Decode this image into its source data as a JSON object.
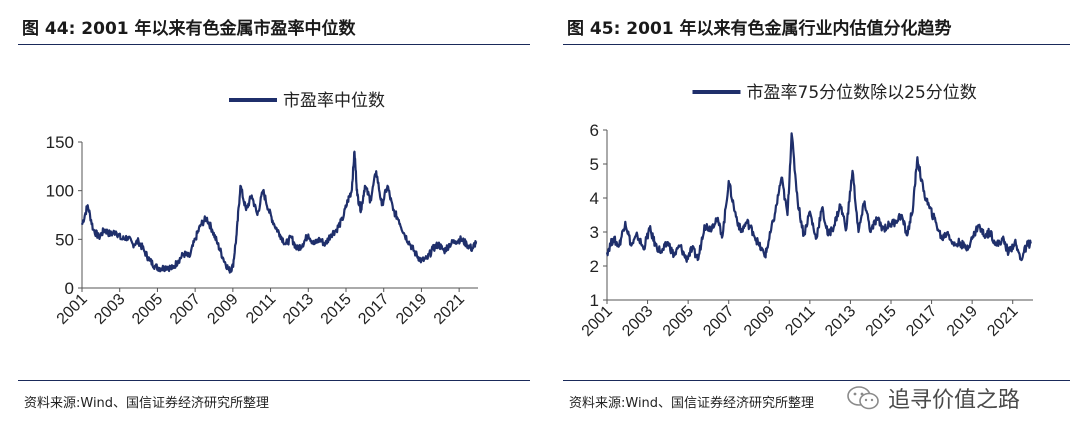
{
  "left": {
    "title": "图 44:  2001 年以来有色金属市盈率中位数",
    "source": "资料来源:Wind、国信证券经济研究所整理"
  },
  "right": {
    "title": "图 45:  2001 年以来有色金属行业内估值分化趋势",
    "source": "资料来源:Wind、国信证券经济研究所整理"
  },
  "watermark": {
    "text": "追寻价值之路",
    "icon": "wechat-icon"
  },
  "colors": {
    "line": "#1f2f6b",
    "text": "#222222",
    "rule": "#1a2a5a"
  },
  "chart_data": [
    {
      "type": "line",
      "legend_position": "top-center",
      "grid": false,
      "series": [
        {
          "name": "市盈率中位数",
          "x": [
            2001.0,
            2001.3,
            2001.6,
            2001.9,
            2002.2,
            2002.5,
            2002.8,
            2003.1,
            2003.4,
            2003.7,
            2004.0,
            2004.3,
            2004.6,
            2004.9,
            2005.2,
            2005.5,
            2005.8,
            2006.1,
            2006.4,
            2006.7,
            2007.0,
            2007.3,
            2007.6,
            2007.9,
            2008.2,
            2008.5,
            2008.8,
            2009.0,
            2009.2,
            2009.4,
            2009.7,
            2010.0,
            2010.3,
            2010.6,
            2010.9,
            2011.2,
            2011.5,
            2011.8,
            2012.1,
            2012.4,
            2012.7,
            2013.0,
            2013.3,
            2013.6,
            2013.9,
            2014.2,
            2014.5,
            2014.8,
            2015.1,
            2015.3,
            2015.45,
            2015.6,
            2015.8,
            2016.0,
            2016.3,
            2016.6,
            2016.9,
            2017.2,
            2017.5,
            2017.8,
            2018.1,
            2018.4,
            2018.7,
            2019.0,
            2019.3,
            2019.6,
            2019.9,
            2020.2,
            2020.5,
            2020.8,
            2021.1,
            2021.4,
            2021.7,
            2021.9
          ],
          "y": [
            65,
            85,
            60,
            52,
            60,
            55,
            58,
            50,
            52,
            45,
            48,
            38,
            28,
            22,
            20,
            22,
            20,
            28,
            35,
            32,
            50,
            65,
            72,
            60,
            45,
            30,
            18,
            22,
            55,
            105,
            80,
            95,
            75,
            100,
            80,
            65,
            55,
            45,
            52,
            40,
            45,
            55,
            45,
            50,
            45,
            55,
            60,
            70,
            90,
            100,
            140,
            95,
            80,
            105,
            90,
            120,
            85,
            105,
            80,
            70,
            55,
            45,
            35,
            28,
            30,
            40,
            45,
            38,
            45,
            48,
            50,
            45,
            40,
            48
          ]
        }
      ],
      "xlabel": "",
      "ylabel": "",
      "xticks": [
        "2001",
        "2003",
        "2005",
        "2007",
        "2009",
        "2011",
        "2013",
        "2015",
        "2017",
        "2019",
        "2021"
      ],
      "yticks": [
        0,
        50,
        100,
        150
      ],
      "xlim": [
        2001,
        2022
      ],
      "ylim": [
        0,
        150
      ]
    },
    {
      "type": "line",
      "legend_position": "top-center",
      "grid": false,
      "series": [
        {
          "name": "市盈率75分位数除以25分位数",
          "x": [
            2001.0,
            2001.3,
            2001.6,
            2001.9,
            2002.2,
            2002.5,
            2002.8,
            2003.1,
            2003.4,
            2003.7,
            2004.0,
            2004.3,
            2004.6,
            2004.9,
            2005.2,
            2005.5,
            2005.8,
            2006.1,
            2006.4,
            2006.7,
            2007.0,
            2007.3,
            2007.6,
            2007.9,
            2008.2,
            2008.5,
            2008.8,
            2009.0,
            2009.3,
            2009.6,
            2009.9,
            2010.1,
            2010.4,
            2010.7,
            2011.0,
            2011.3,
            2011.6,
            2011.9,
            2012.2,
            2012.5,
            2012.8,
            2013.1,
            2013.4,
            2013.7,
            2014.0,
            2014.3,
            2014.6,
            2014.9,
            2015.2,
            2015.5,
            2015.8,
            2016.1,
            2016.3,
            2016.6,
            2016.9,
            2017.2,
            2017.5,
            2017.8,
            2018.1,
            2018.4,
            2018.7,
            2019.0,
            2019.3,
            2019.6,
            2019.9,
            2020.2,
            2020.5,
            2020.8,
            2021.1,
            2021.4,
            2021.7,
            2021.9
          ],
          "y": [
            2.4,
            2.8,
            2.6,
            3.3,
            2.6,
            2.9,
            2.5,
            3.1,
            2.6,
            2.4,
            2.7,
            2.3,
            2.6,
            2.2,
            2.5,
            2.2,
            3.2,
            3.1,
            3.4,
            2.9,
            4.5,
            3.6,
            3.0,
            3.3,
            3.0,
            2.6,
            2.3,
            2.8,
            3.6,
            4.6,
            3.5,
            5.9,
            3.9,
            2.9,
            3.6,
            2.8,
            3.7,
            2.9,
            3.2,
            3.8,
            3.1,
            4.8,
            3.0,
            3.9,
            3.0,
            3.4,
            3.1,
            3.2,
            3.3,
            3.5,
            2.9,
            3.8,
            5.2,
            4.2,
            3.7,
            3.3,
            2.8,
            3.0,
            2.6,
            2.7,
            2.5,
            2.8,
            3.2,
            2.9,
            3.0,
            2.6,
            2.8,
            2.4,
            2.7,
            2.2,
            2.6,
            2.7
          ]
        }
      ],
      "xlabel": "",
      "ylabel": "",
      "xticks": [
        "2001",
        "2003",
        "2005",
        "2007",
        "2009",
        "2011",
        "2013",
        "2015",
        "2017",
        "2019",
        "2021"
      ],
      "yticks": [
        1,
        2,
        3,
        4,
        5,
        6
      ],
      "xlim": [
        2001,
        2022
      ],
      "ylim": [
        1,
        6
      ]
    }
  ]
}
